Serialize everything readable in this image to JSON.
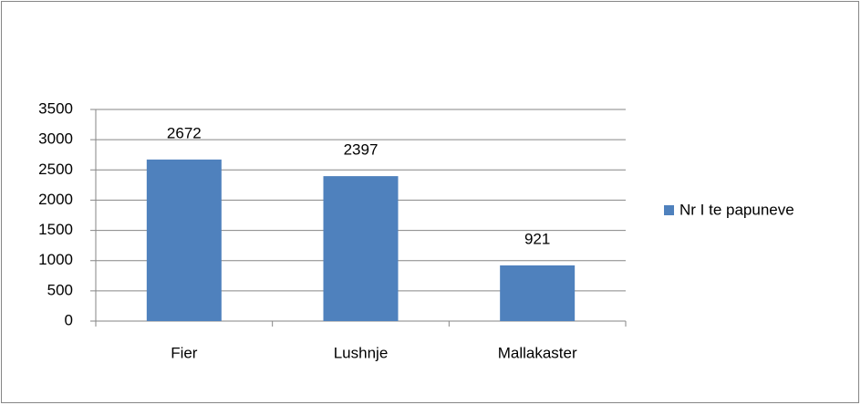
{
  "chart_data": {
    "type": "bar",
    "categories": [
      "Fier",
      "Lushnje",
      "Mallakaster"
    ],
    "series": [
      {
        "name": "Nr I te papuneve",
        "color": "#4f81bd",
        "values": [
          2672,
          2397,
          921
        ]
      }
    ],
    "ylim": [
      0,
      3500
    ],
    "yticks": [
      0,
      500,
      1000,
      1500,
      2000,
      2500,
      3000,
      3500
    ],
    "grid": true,
    "legend": "right"
  }
}
